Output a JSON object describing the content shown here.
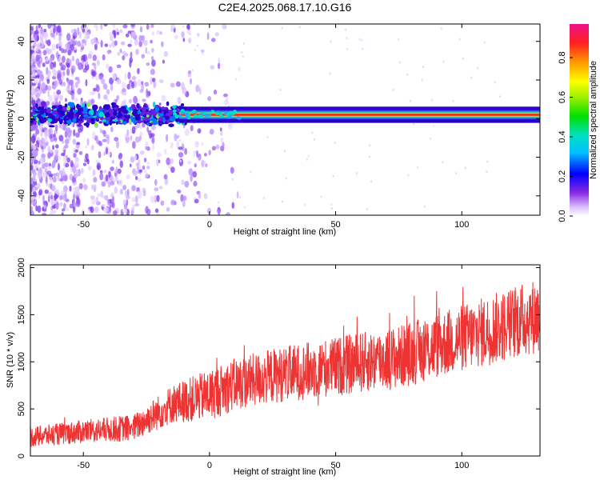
{
  "title": "C2E4.2025.068.17.10.G16",
  "colors": {
    "snr_line": "#ee3333",
    "axis": "#000000"
  },
  "chart_data": [
    {
      "type": "heatmap",
      "name": "spectrogram",
      "xlabel": "Height of straight line (km)",
      "ylabel": "Frequency (Hz)",
      "xlim": [
        -71,
        131
      ],
      "ylim": [
        -50,
        49
      ],
      "xticks": [
        -50,
        0,
        50,
        100
      ],
      "xtick_labels": [
        "-50",
        "0",
        "50",
        "100"
      ],
      "yticks": [
        -40,
        -20,
        0,
        20,
        40
      ],
      "ytick_labels": [
        "-40",
        "-20",
        "0",
        "20",
        "40"
      ],
      "main_frequency_hz": 2,
      "colorbar": {
        "label": "Normalized spectral amplitude",
        "range": [
          0,
          0.97
        ],
        "ticks": [
          0.0,
          0.2,
          0.4,
          0.6,
          0.8
        ],
        "tick_labels": [
          "0.0",
          "0.2",
          "0.4",
          "0.6",
          "0.8"
        ]
      }
    },
    {
      "type": "line",
      "name": "snr",
      "xlabel": "Height of straight line (km)",
      "ylabel": "SNR (10 * v/v)",
      "xlim": [
        -71,
        131
      ],
      "ylim": [
        0,
        2030
      ],
      "xticks": [
        -50,
        0,
        50,
        100
      ],
      "xtick_labels": [
        "-50",
        "0",
        "50",
        "100"
      ],
      "yticks": [
        0,
        500,
        1000,
        1500,
        2000
      ],
      "ytick_labels": [
        "0",
        "500",
        "1000",
        "1500",
        "2000"
      ],
      "trend_x": [
        -71,
        -50,
        -30,
        -15,
        0,
        10,
        25,
        50,
        75,
        100,
        131
      ],
      "trend_y": [
        200,
        260,
        300,
        550,
        650,
        760,
        850,
        950,
        1050,
        1250,
        1500
      ],
      "noise_x": [
        -71,
        -30,
        0,
        50,
        100,
        131
      ],
      "noise_y": [
        120,
        160,
        300,
        350,
        400,
        450
      ]
    }
  ]
}
